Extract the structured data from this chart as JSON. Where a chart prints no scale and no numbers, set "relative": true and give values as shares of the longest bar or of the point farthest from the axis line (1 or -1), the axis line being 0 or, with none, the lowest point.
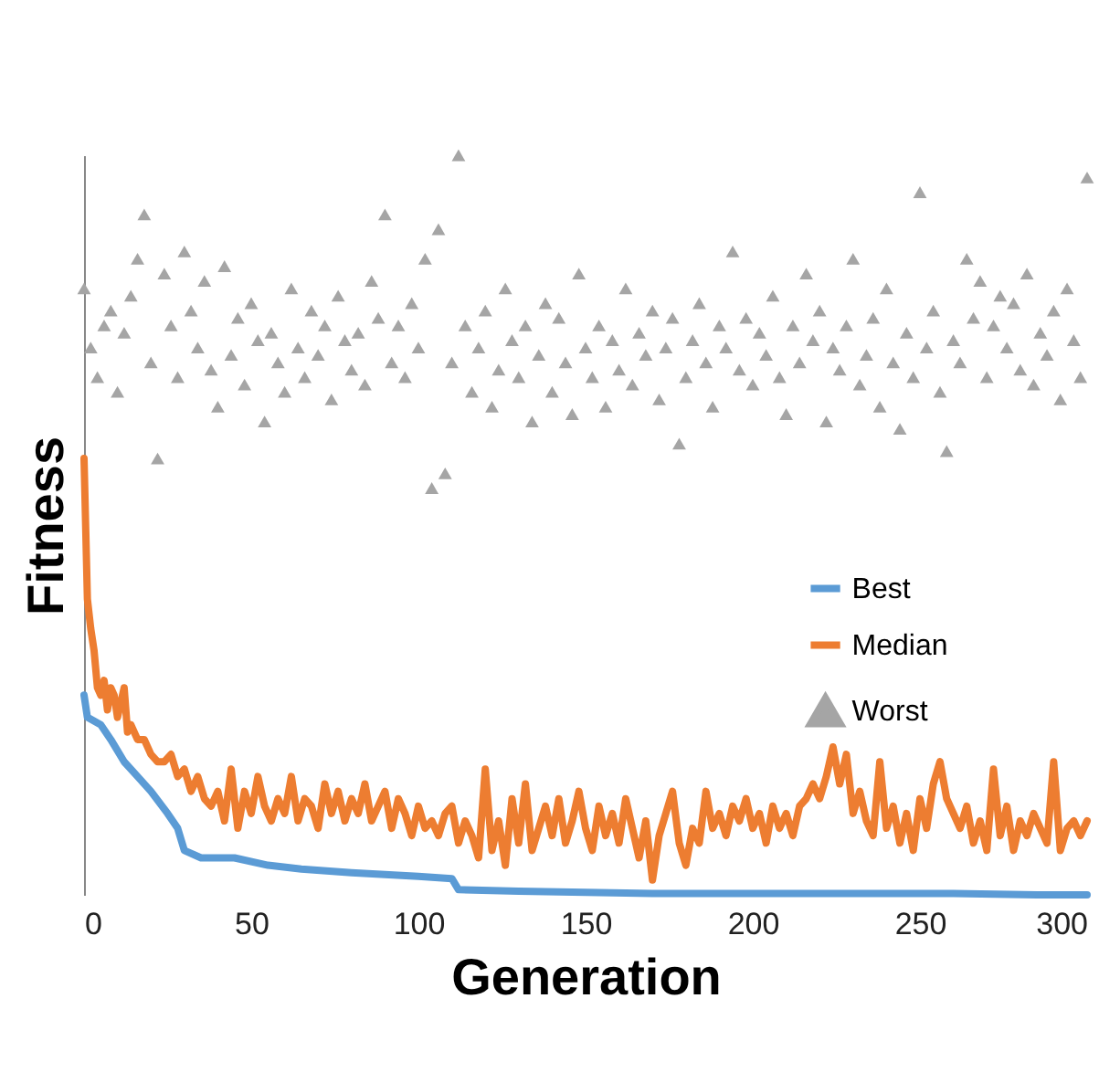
{
  "chart_data": {
    "type": "line",
    "xlabel": "Generation",
    "ylabel": "Fitness",
    "relative": true,
    "xlim": [
      0,
      300
    ],
    "xticks": [
      0,
      50,
      100,
      150,
      200,
      250,
      300
    ],
    "grid": false,
    "legend": "right",
    "series": [
      {
        "name": "Best",
        "color": "#5b9bd5",
        "type": "line",
        "marker": "none",
        "x": [
          0,
          1,
          5,
          8,
          12,
          16,
          20,
          25,
          28,
          30,
          35,
          45,
          55,
          65,
          80,
          100,
          110,
          112,
          130,
          170,
          200,
          260,
          285,
          300
        ],
        "values": [
          0.27,
          0.24,
          0.23,
          0.21,
          0.18,
          0.16,
          0.14,
          0.11,
          0.09,
          0.06,
          0.05,
          0.05,
          0.04,
          0.035,
          0.03,
          0.025,
          0.022,
          0.007,
          0.005,
          0.002,
          0.002,
          0.002,
          0,
          0
        ]
      },
      {
        "name": "Median",
        "color": "#ed7d31",
        "type": "line",
        "marker": "none",
        "x": [
          0,
          1,
          2,
          3,
          4,
          5,
          6,
          7,
          8,
          9,
          10,
          11,
          12,
          13,
          14,
          16,
          18,
          20,
          22,
          24,
          26,
          28,
          30,
          32,
          34,
          36,
          38,
          40,
          42,
          44,
          46,
          48,
          50,
          52,
          54,
          56,
          58,
          60,
          62,
          64,
          66,
          68,
          70,
          72,
          74,
          76,
          78,
          80,
          82,
          84,
          86,
          88,
          90,
          92,
          94,
          96,
          98,
          100,
          102,
          104,
          106,
          108,
          110,
          112,
          114,
          116,
          118,
          120,
          122,
          124,
          126,
          128,
          130,
          132,
          134,
          136,
          138,
          140,
          142,
          144,
          146,
          148,
          150,
          152,
          154,
          156,
          158,
          160,
          162,
          164,
          166,
          168,
          170,
          172,
          174,
          176,
          178,
          180,
          182,
          184,
          186,
          188,
          190,
          192,
          194,
          196,
          198,
          200,
          202,
          204,
          206,
          208,
          210,
          212,
          214,
          216,
          218,
          220,
          222,
          224,
          226,
          228,
          230,
          232,
          234,
          236,
          238,
          240,
          242,
          244,
          246,
          248,
          250,
          252,
          254,
          256,
          258,
          260,
          262,
          264,
          266,
          268,
          270,
          272,
          274,
          276,
          278,
          280,
          282,
          284,
          286,
          288,
          290,
          292,
          294,
          296,
          298,
          300
        ],
        "values": [
          0.59,
          0.4,
          0.36,
          0.33,
          0.28,
          0.27,
          0.29,
          0.25,
          0.28,
          0.27,
          0.24,
          0.26,
          0.28,
          0.22,
          0.23,
          0.21,
          0.21,
          0.19,
          0.18,
          0.18,
          0.19,
          0.16,
          0.17,
          0.14,
          0.16,
          0.13,
          0.12,
          0.14,
          0.1,
          0.17,
          0.09,
          0.14,
          0.11,
          0.16,
          0.12,
          0.1,
          0.13,
          0.11,
          0.16,
          0.1,
          0.13,
          0.12,
          0.09,
          0.15,
          0.11,
          0.14,
          0.1,
          0.13,
          0.11,
          0.15,
          0.1,
          0.12,
          0.14,
          0.09,
          0.13,
          0.11,
          0.08,
          0.12,
          0.09,
          0.1,
          0.08,
          0.11,
          0.12,
          0.07,
          0.1,
          0.08,
          0.05,
          0.17,
          0.06,
          0.1,
          0.04,
          0.13,
          0.07,
          0.15,
          0.06,
          0.09,
          0.12,
          0.08,
          0.13,
          0.07,
          0.1,
          0.14,
          0.09,
          0.06,
          0.12,
          0.08,
          0.11,
          0.07,
          0.13,
          0.09,
          0.05,
          0.1,
          0.02,
          0.08,
          0.11,
          0.14,
          0.07,
          0.04,
          0.09,
          0.07,
          0.14,
          0.09,
          0.11,
          0.08,
          0.12,
          0.1,
          0.13,
          0.09,
          0.11,
          0.07,
          0.12,
          0.09,
          0.11,
          0.08,
          0.12,
          0.13,
          0.15,
          0.13,
          0.16,
          0.2,
          0.15,
          0.19,
          0.11,
          0.14,
          0.1,
          0.08,
          0.18,
          0.09,
          0.12,
          0.07,
          0.11,
          0.06,
          0.13,
          0.09,
          0.15,
          0.18,
          0.13,
          0.11,
          0.09,
          0.12,
          0.07,
          0.1,
          0.06,
          0.17,
          0.08,
          0.12,
          0.06,
          0.1,
          0.08,
          0.11,
          0.09,
          0.07,
          0.18,
          0.06,
          0.09,
          0.1,
          0.08,
          0.1
        ]
      },
      {
        "name": "Worst",
        "color": "#a5a5a5",
        "type": "scatter",
        "marker": "triangle",
        "x": [
          0,
          2,
          4,
          6,
          8,
          10,
          12,
          14,
          16,
          18,
          20,
          22,
          24,
          26,
          28,
          30,
          32,
          34,
          36,
          38,
          40,
          42,
          44,
          46,
          48,
          50,
          52,
          54,
          56,
          58,
          60,
          62,
          64,
          66,
          68,
          70,
          72,
          74,
          76,
          78,
          80,
          82,
          84,
          86,
          88,
          90,
          92,
          94,
          96,
          98,
          100,
          102,
          104,
          106,
          108,
          110,
          112,
          114,
          116,
          118,
          120,
          122,
          124,
          126,
          128,
          130,
          132,
          134,
          136,
          138,
          140,
          142,
          144,
          146,
          148,
          150,
          152,
          154,
          156,
          158,
          160,
          162,
          164,
          166,
          168,
          170,
          172,
          174,
          176,
          178,
          180,
          182,
          184,
          186,
          188,
          190,
          192,
          194,
          196,
          198,
          200,
          202,
          204,
          206,
          208,
          210,
          212,
          214,
          216,
          218,
          220,
          222,
          224,
          226,
          228,
          230,
          232,
          234,
          236,
          238,
          240,
          242,
          244,
          246,
          248,
          250,
          252,
          254,
          256,
          258,
          260,
          262,
          264,
          266,
          268,
          270,
          272,
          274,
          276,
          278,
          280,
          282,
          284,
          286,
          288,
          290,
          292,
          294,
          296,
          298,
          300
        ],
        "values": [
          0.82,
          0.74,
          0.7,
          0.77,
          0.79,
          0.68,
          0.76,
          0.81,
          0.86,
          0.92,
          0.72,
          0.59,
          0.84,
          0.77,
          0.7,
          0.87,
          0.79,
          0.74,
          0.83,
          0.71,
          0.66,
          0.85,
          0.73,
          0.78,
          0.69,
          0.8,
          0.75,
          0.64,
          0.76,
          0.72,
          0.68,
          0.82,
          0.74,
          0.7,
          0.79,
          0.73,
          0.77,
          0.67,
          0.81,
          0.75,
          0.71,
          0.76,
          0.69,
          0.83,
          0.78,
          0.92,
          0.72,
          0.77,
          0.7,
          0.8,
          0.74,
          0.86,
          0.55,
          0.9,
          0.57,
          0.72,
          1.0,
          0.77,
          0.68,
          0.74,
          0.79,
          0.66,
          0.71,
          0.82,
          0.75,
          0.7,
          0.77,
          0.64,
          0.73,
          0.8,
          0.68,
          0.78,
          0.72,
          0.65,
          0.84,
          0.74,
          0.7,
          0.77,
          0.66,
          0.75,
          0.71,
          0.82,
          0.69,
          0.76,
          0.73,
          0.79,
          0.67,
          0.74,
          0.78,
          0.61,
          0.7,
          0.75,
          0.8,
          0.72,
          0.66,
          0.77,
          0.74,
          0.87,
          0.71,
          0.78,
          0.69,
          0.76,
          0.73,
          0.81,
          0.7,
          0.65,
          0.77,
          0.72,
          0.84,
          0.75,
          0.79,
          0.64,
          0.74,
          0.71,
          0.77,
          0.86,
          0.69,
          0.73,
          0.78,
          0.66,
          0.82,
          0.72,
          0.63,
          0.76,
          0.7,
          0.95,
          0.74,
          0.79,
          0.68,
          0.6,
          0.75,
          0.72,
          0.86,
          0.78,
          0.83,
          0.7,
          0.77,
          0.81,
          0.74,
          0.8,
          0.71,
          0.84,
          0.69,
          0.76,
          0.73,
          0.79,
          0.67,
          0.82,
          0.75,
          0.7,
          0.97
        ]
      }
    ]
  }
}
